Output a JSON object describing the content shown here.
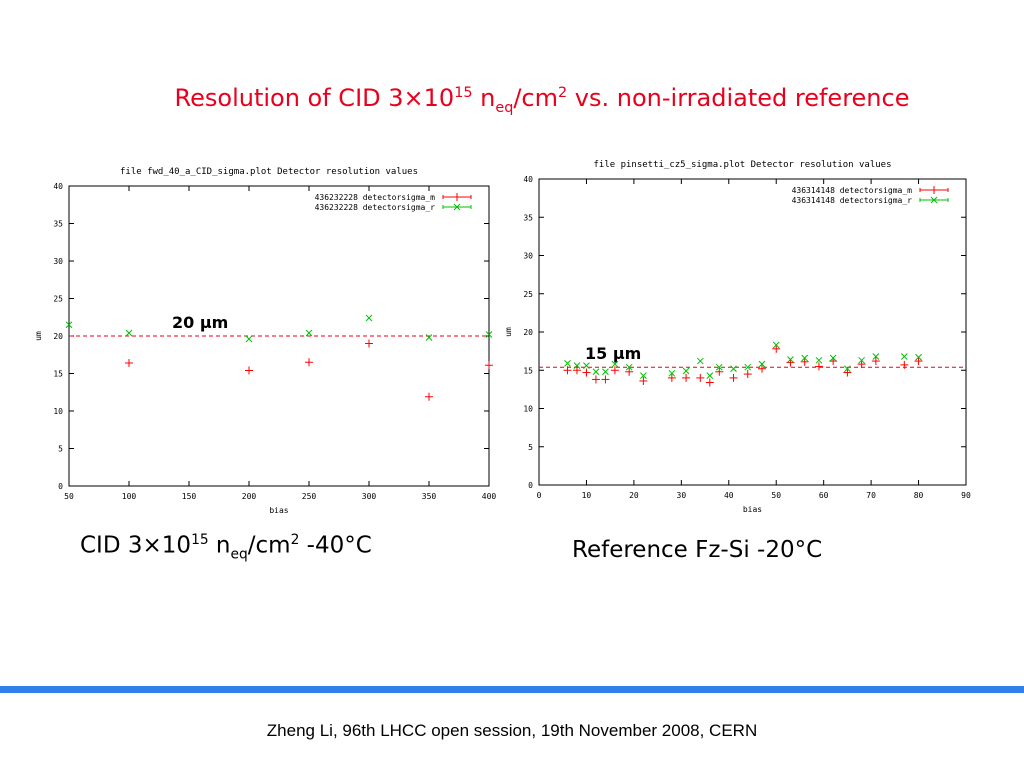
{
  "slide": {
    "title_pre": "Resolution of CID 3",
    "title_times": "×",
    "title_ten": "10",
    "title_exp": "15",
    "title_n": " n",
    "title_sub": "eq",
    "title_cm": "/cm",
    "title_cm_exp": "2",
    "title_post": " vs. non-irradiated reference",
    "caption_left": {
      "pre": "CID 3",
      "times": "×",
      "ten": "10",
      "exp": "15",
      "n": " n",
      "sub": "eq",
      "cm": "/cm",
      "cm_exp": "2",
      "post": " -40°C"
    },
    "caption_right": "Reference Fz-Si -20°C",
    "footer": "Zheng Li, 96th LHCC open session, 19th November 2008, CERN",
    "accent_color": "#e8001c",
    "bar_color": "#2f80e8"
  },
  "chart_data": [
    {
      "type": "scatter",
      "title": "file fwd_40_a_CID_sigma.plot     Detector resolution values",
      "xlabel": "bias",
      "ylabel": "um",
      "xlim": [
        50,
        400
      ],
      "ylim": [
        0,
        40
      ],
      "xticks": [
        50,
        100,
        150,
        200,
        250,
        300,
        350,
        400
      ],
      "yticks": [
        0,
        5,
        10,
        15,
        20,
        25,
        30,
        35,
        40
      ],
      "grid": false,
      "legend_position": "top-right",
      "series": [
        {
          "name": "436232228 detectorsigma_m",
          "marker": "+",
          "color": "#ff0000",
          "points": [
            [
              100,
              16.4
            ],
            [
              200,
              15.4
            ],
            [
              250,
              16.5
            ],
            [
              300,
              19.0
            ],
            [
              350,
              11.9
            ],
            [
              400,
              16.1
            ]
          ]
        },
        {
          "name": "436232228 detectorsigma_r",
          "marker": "x",
          "color": "#00c000",
          "points": [
            [
              50,
              21.5
            ],
            [
              100,
              20.4
            ],
            [
              200,
              19.6
            ],
            [
              250,
              20.4
            ],
            [
              300,
              22.4
            ],
            [
              350,
              19.8
            ],
            [
              400,
              20.2
            ]
          ]
        }
      ],
      "reference_line": {
        "y": 20,
        "color": "#e8001c",
        "label": "20 μm"
      }
    },
    {
      "type": "scatter",
      "title": "file pinsetti_cz5_sigma.plot     Detector resolution values",
      "xlabel": "bias",
      "ylabel": "um",
      "xlim": [
        0,
        90
      ],
      "ylim": [
        0,
        40
      ],
      "xticks": [
        0,
        10,
        20,
        30,
        40,
        50,
        60,
        70,
        80,
        90
      ],
      "yticks": [
        0,
        5,
        10,
        15,
        20,
        25,
        30,
        35,
        40
      ],
      "grid": false,
      "legend_position": "top-right",
      "series": [
        {
          "name": "436314148 detectorsigma_m",
          "marker": "+",
          "color": "#ff0000",
          "points": [
            [
              6,
              15.0
            ],
            [
              8,
              15.0
            ],
            [
              10,
              14.7
            ],
            [
              12,
              13.8
            ],
            [
              14,
              13.8
            ],
            [
              16,
              15.0
            ],
            [
              19,
              14.8
            ],
            [
              22,
              13.6
            ],
            [
              28,
              14.0
            ],
            [
              31,
              14.0
            ],
            [
              34,
              14.0
            ],
            [
              36,
              13.4
            ],
            [
              38,
              14.8
            ],
            [
              41,
              14.0
            ],
            [
              44,
              14.5
            ],
            [
              47,
              15.2
            ],
            [
              50,
              17.8
            ],
            [
              53,
              16.0
            ],
            [
              56,
              16.1
            ],
            [
              59,
              15.5
            ],
            [
              62,
              16.2
            ],
            [
              65,
              14.7
            ],
            [
              68,
              15.8
            ],
            [
              71,
              16.2
            ],
            [
              77,
              15.7
            ],
            [
              80,
              16.2
            ]
          ]
        },
        {
          "name": "436314148 detectorsigma_r",
          "marker": "x",
          "color": "#00c000",
          "points": [
            [
              6,
              15.9
            ],
            [
              8,
              15.6
            ],
            [
              10,
              15.6
            ],
            [
              12,
              14.8
            ],
            [
              14,
              14.8
            ],
            [
              16,
              15.8
            ],
            [
              19,
              15.4
            ],
            [
              22,
              14.3
            ],
            [
              28,
              14.6
            ],
            [
              31,
              14.9
            ],
            [
              34,
              16.2
            ],
            [
              36,
              14.3
            ],
            [
              38,
              15.4
            ],
            [
              41,
              15.2
            ],
            [
              44,
              15.4
            ],
            [
              47,
              15.8
            ],
            [
              50,
              18.3
            ],
            [
              53,
              16.4
            ],
            [
              56,
              16.6
            ],
            [
              59,
              16.3
            ],
            [
              62,
              16.6
            ],
            [
              65,
              15.2
            ],
            [
              68,
              16.3
            ],
            [
              71,
              16.8
            ],
            [
              77,
              16.8
            ],
            [
              80,
              16.7
            ]
          ]
        }
      ],
      "reference_line": {
        "y": 15.4,
        "color": "#e8001c",
        "label": "15 μm"
      }
    }
  ]
}
